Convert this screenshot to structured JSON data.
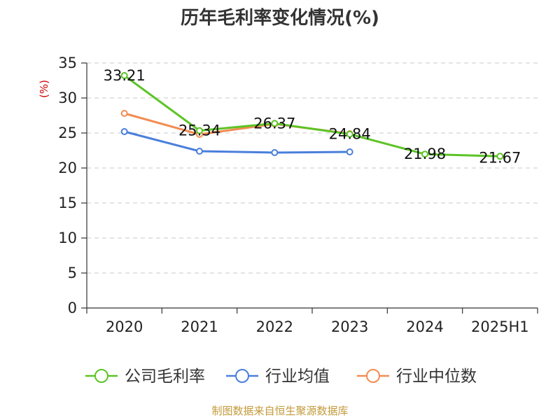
{
  "chart_data": {
    "type": "line",
    "title": "历年毛利率变化情况(%)",
    "ylabel": "(%)",
    "categories": [
      "2020",
      "2021",
      "2022",
      "2023",
      "2024",
      "2025H1"
    ],
    "ylim": [
      0,
      35
    ],
    "yticks": [
      0,
      5,
      10,
      15,
      20,
      25,
      30,
      35
    ],
    "grid": true,
    "legend_position": "bottom",
    "series": [
      {
        "name": "公司毛利率",
        "color": "#5cc425",
        "values": [
          33.21,
          25.34,
          26.37,
          24.84,
          21.98,
          21.67
        ],
        "labels": [
          "33.21",
          "25.34",
          "26.37",
          "24.84",
          "21.98",
          "21.67"
        ]
      },
      {
        "name": "行业均值",
        "color": "#4a7fdc",
        "values": [
          25.2,
          22.4,
          22.2,
          22.3,
          null,
          null
        ]
      },
      {
        "name": "行业中位数",
        "color": "#f28c52",
        "values": [
          27.8,
          24.8,
          26.3,
          24.9,
          null,
          null
        ]
      }
    ],
    "source": "制图数据来自恒生聚源数据库"
  }
}
